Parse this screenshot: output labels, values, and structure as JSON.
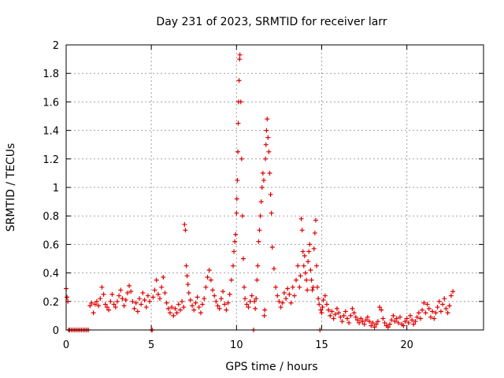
{
  "chart_data": {
    "type": "scatter",
    "title": "Day 231 of 2023, SRMTID for receiver larr",
    "xlabel": "GPS time / hours",
    "ylabel": "SRMTID / TECUs",
    "xlim": [
      0,
      24.5
    ],
    "ylim": [
      0,
      2
    ],
    "xticks": [
      0,
      5,
      10,
      15,
      20
    ],
    "yticks": [
      0,
      0.2,
      0.4,
      0.6,
      0.8,
      1,
      1.2,
      1.4,
      1.6,
      1.8,
      2
    ],
    "grid": true,
    "marker": "+",
    "color": "#e00000",
    "series": [
      {
        "name": "SRMTID",
        "x": [
          0.0,
          0.05,
          0.1,
          0.15,
          0.2,
          0.3,
          0.4,
          0.5,
          0.6,
          0.7,
          0.8,
          0.9,
          1.0,
          1.1,
          1.2,
          1.3,
          1.4,
          1.5,
          1.6,
          1.7,
          1.8,
          1.9,
          2.0,
          2.1,
          2.2,
          2.3,
          2.4,
          2.5,
          2.6,
          2.7,
          2.8,
          2.9,
          3.0,
          3.1,
          3.2,
          3.3,
          3.4,
          3.5,
          3.6,
          3.7,
          3.8,
          3.9,
          4.0,
          4.1,
          4.2,
          4.3,
          4.4,
          4.5,
          4.6,
          4.7,
          4.8,
          4.9,
          5.0,
          5.05,
          5.1,
          5.2,
          5.3,
          5.4,
          5.5,
          5.6,
          5.7,
          5.8,
          5.9,
          6.0,
          6.1,
          6.2,
          6.3,
          6.4,
          6.5,
          6.6,
          6.7,
          6.8,
          6.9,
          6.95,
          7.0,
          7.05,
          7.1,
          7.15,
          7.2,
          7.3,
          7.4,
          7.5,
          7.6,
          7.7,
          7.8,
          7.9,
          8.0,
          8.1,
          8.2,
          8.3,
          8.4,
          8.5,
          8.6,
          8.7,
          8.8,
          8.9,
          9.0,
          9.1,
          9.2,
          9.3,
          9.4,
          9.5,
          9.6,
          9.7,
          9.8,
          9.85,
          9.9,
          9.95,
          10.0,
          10.02,
          10.05,
          10.08,
          10.1,
          10.12,
          10.15,
          10.18,
          10.2,
          10.25,
          10.3,
          10.35,
          10.4,
          10.45,
          10.5,
          10.6,
          10.7,
          10.8,
          10.9,
          11.0,
          11.05,
          11.1,
          11.15,
          11.2,
          11.25,
          11.3,
          11.35,
          11.4,
          11.45,
          11.5,
          11.55,
          11.6,
          11.63,
          11.66,
          11.7,
          11.73,
          11.76,
          11.8,
          11.85,
          11.9,
          11.95,
          12.0,
          12.05,
          12.1,
          12.2,
          12.3,
          12.4,
          12.5,
          12.6,
          12.7,
          12.8,
          12.9,
          13.0,
          13.1,
          13.2,
          13.3,
          13.4,
          13.5,
          13.6,
          13.7,
          13.75,
          13.8,
          13.85,
          13.9,
          13.95,
          14.0,
          14.05,
          14.1,
          14.15,
          14.2,
          14.25,
          14.3,
          14.35,
          14.4,
          14.45,
          14.5,
          14.55,
          14.6,
          14.65,
          14.7,
          14.75,
          14.8,
          14.85,
          14.9,
          14.95,
          15.0,
          15.05,
          15.1,
          15.2,
          15.3,
          15.4,
          15.5,
          15.6,
          15.7,
          15.8,
          15.9,
          16.0,
          16.1,
          16.2,
          16.3,
          16.4,
          16.5,
          16.6,
          16.7,
          16.8,
          16.9,
          17.0,
          17.1,
          17.2,
          17.3,
          17.4,
          17.5,
          17.6,
          17.7,
          17.8,
          17.9,
          18.0,
          18.1,
          18.2,
          18.3,
          18.4,
          18.5,
          18.6,
          18.7,
          18.8,
          18.9,
          19.0,
          19.1,
          19.2,
          19.3,
          19.4,
          19.5,
          19.6,
          19.7,
          19.8,
          19.9,
          20.0,
          20.1,
          20.2,
          20.3,
          20.4,
          20.5,
          20.6,
          20.7,
          20.8,
          20.9,
          21.0,
          21.1,
          21.2,
          21.3,
          21.4,
          21.5,
          21.6,
          21.7,
          21.8,
          21.9,
          22.0,
          22.1,
          22.2,
          22.3,
          22.4,
          22.5,
          22.6,
          22.7
        ],
        "y": [
          0.29,
          0.23,
          0.2,
          0.0,
          0.0,
          0.0,
          0.0,
          0.0,
          0.0,
          0.0,
          0.0,
          0.0,
          0.0,
          0.0,
          0.0,
          0.0,
          0.17,
          0.19,
          0.12,
          0.18,
          0.2,
          0.17,
          0.22,
          0.3,
          0.25,
          0.18,
          0.16,
          0.14,
          0.2,
          0.25,
          0.18,
          0.16,
          0.2,
          0.24,
          0.28,
          0.22,
          0.17,
          0.21,
          0.26,
          0.31,
          0.27,
          0.2,
          0.15,
          0.19,
          0.13,
          0.22,
          0.18,
          0.26,
          0.21,
          0.16,
          0.24,
          0.2,
          0.0,
          0.0,
          0.23,
          0.28,
          0.35,
          0.25,
          0.22,
          0.3,
          0.37,
          0.26,
          0.19,
          0.15,
          0.12,
          0.16,
          0.1,
          0.15,
          0.12,
          0.18,
          0.14,
          0.2,
          0.16,
          0.74,
          0.7,
          0.45,
          0.38,
          0.32,
          0.26,
          0.21,
          0.17,
          0.14,
          0.19,
          0.23,
          0.16,
          0.12,
          0.18,
          0.22,
          0.3,
          0.37,
          0.42,
          0.35,
          0.28,
          0.24,
          0.2,
          0.17,
          0.15,
          0.22,
          0.27,
          0.18,
          0.14,
          0.19,
          0.25,
          0.35,
          0.45,
          0.55,
          0.62,
          0.67,
          0.82,
          0.92,
          1.05,
          1.25,
          1.45,
          1.6,
          1.75,
          1.9,
          1.93,
          1.6,
          1.2,
          0.8,
          0.5,
          0.3,
          0.22,
          0.18,
          0.16,
          0.2,
          0.24,
          0.0,
          0.2,
          0.15,
          0.22,
          0.35,
          0.45,
          0.62,
          0.7,
          0.8,
          0.9,
          1.0,
          1.1,
          1.05,
          0.1,
          0.14,
          1.2,
          1.3,
          1.4,
          1.48,
          1.35,
          1.25,
          1.1,
          0.95,
          0.82,
          0.58,
          0.43,
          0.3,
          0.24,
          0.2,
          0.16,
          0.19,
          0.26,
          0.22,
          0.29,
          0.25,
          0.19,
          0.3,
          0.24,
          0.35,
          0.45,
          0.3,
          0.38,
          0.78,
          0.7,
          0.55,
          0.45,
          0.52,
          0.4,
          0.35,
          0.28,
          0.48,
          0.55,
          0.6,
          0.42,
          0.35,
          0.28,
          0.3,
          0.57,
          0.68,
          0.77,
          0.45,
          0.3,
          0.22,
          0.18,
          0.0,
          0.14,
          0.12,
          0.16,
          0.21,
          0.24,
          0.18,
          0.14,
          0.1,
          0.13,
          0.08,
          0.11,
          0.15,
          0.12,
          0.09,
          0.06,
          0.1,
          0.13,
          0.08,
          0.05,
          0.1,
          0.15,
          0.12,
          0.09,
          0.07,
          0.05,
          0.08,
          0.06,
          0.04,
          0.07,
          0.09,
          0.06,
          0.03,
          0.05,
          0.02,
          0.04,
          0.06,
          0.16,
          0.14,
          0.08,
          0.05,
          0.03,
          0.02,
          0.04,
          0.07,
          0.1,
          0.06,
          0.08,
          0.05,
          0.09,
          0.04,
          0.03,
          0.06,
          0.08,
          0.05,
          0.1,
          0.07,
          0.04,
          0.06,
          0.09,
          0.12,
          0.08,
          0.14,
          0.19,
          0.12,
          0.18,
          0.15,
          0.09,
          0.13,
          0.08,
          0.12,
          0.16,
          0.2,
          0.13,
          0.18,
          0.22,
          0.15,
          0.12,
          0.17,
          0.24,
          0.27
        ]
      }
    ]
  }
}
